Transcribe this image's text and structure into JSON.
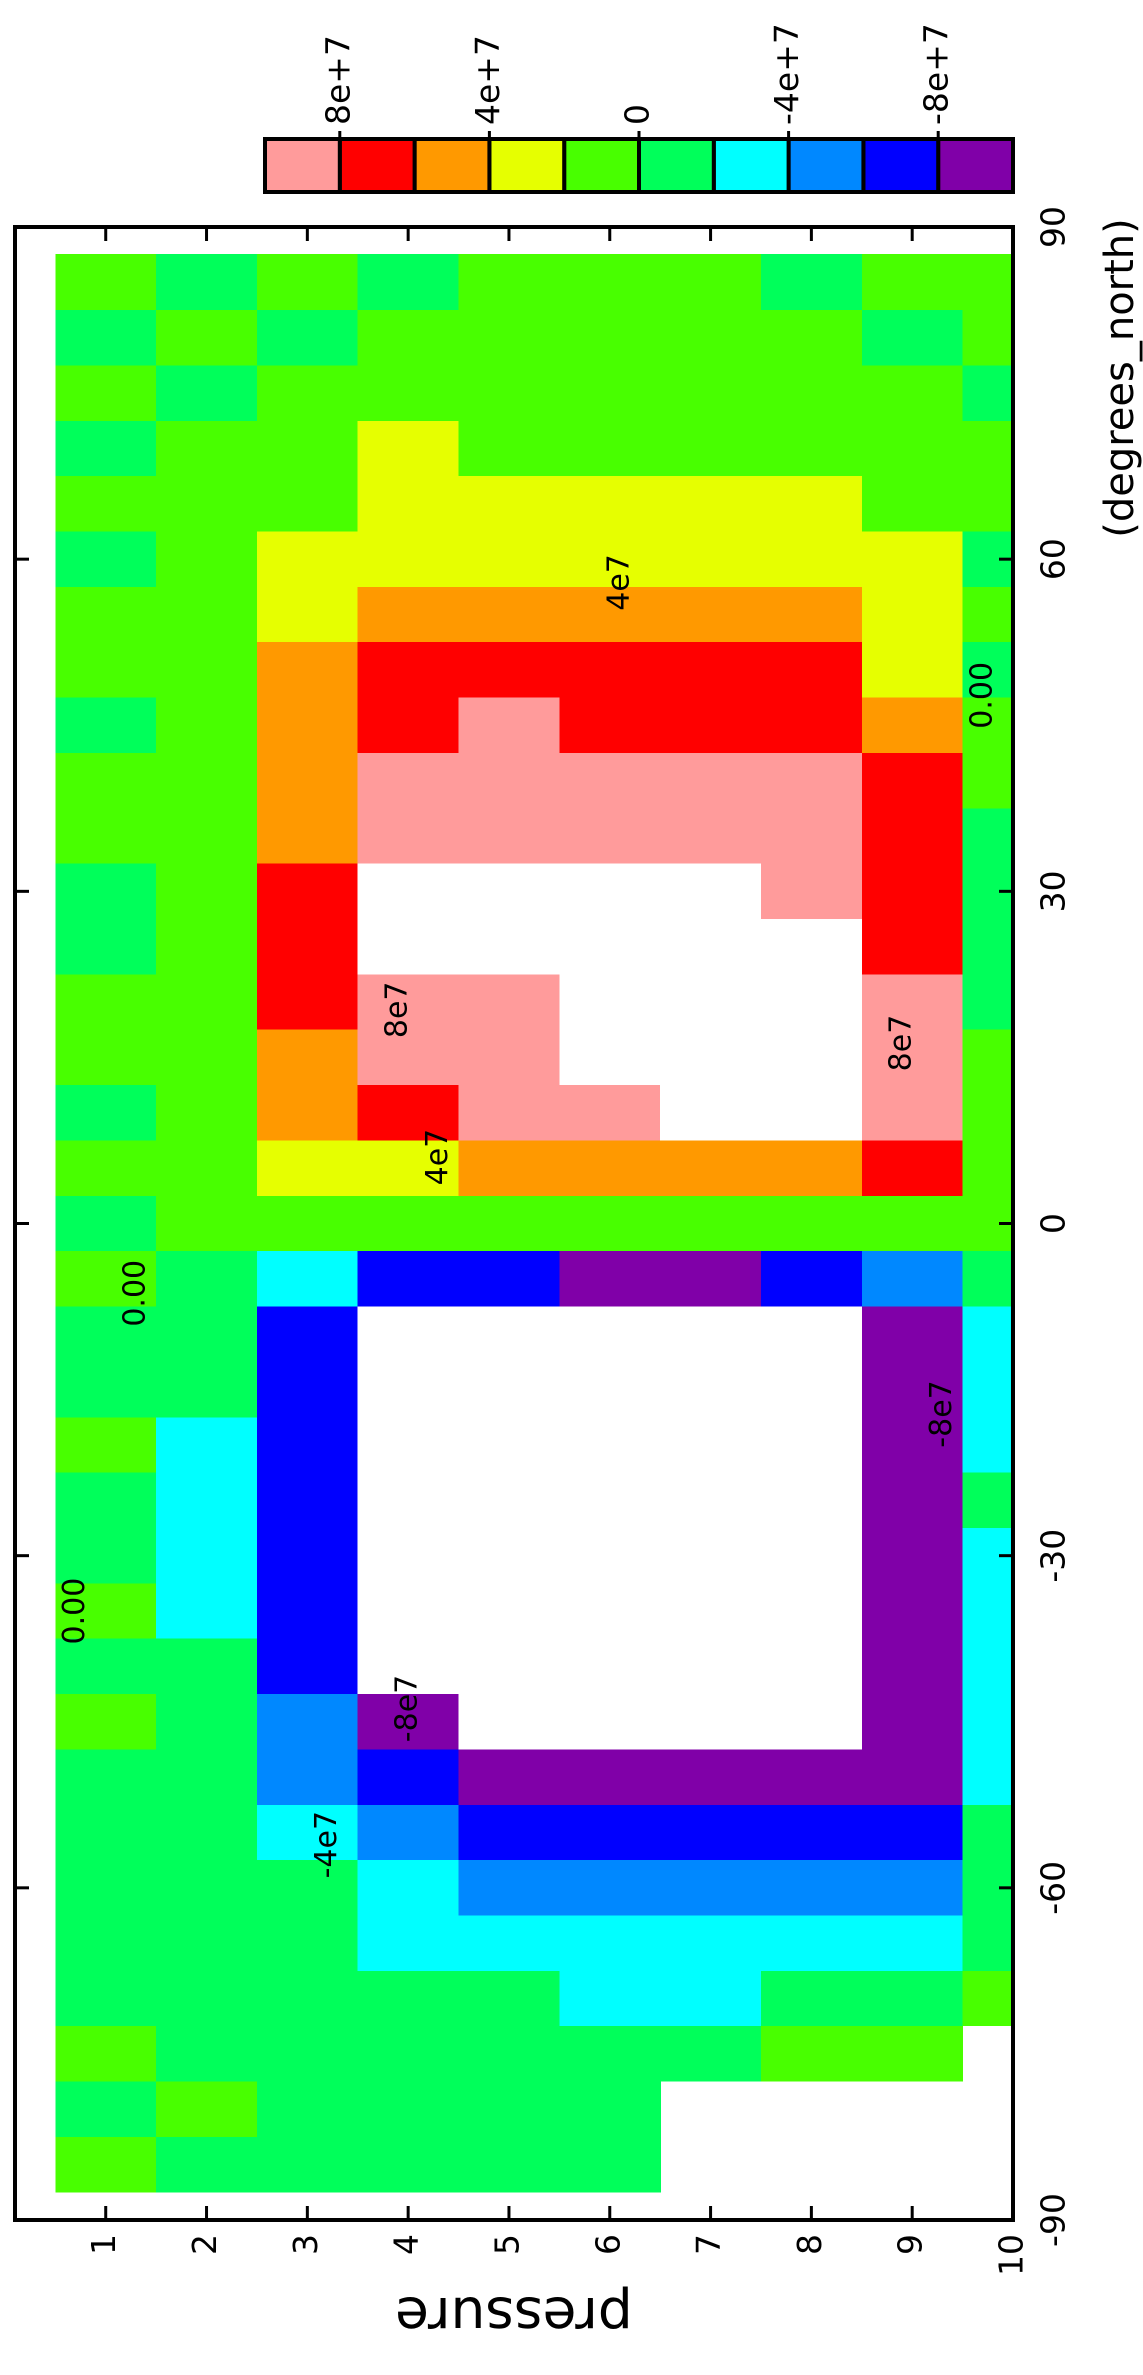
{
  "chart_data": {
    "type": "contour",
    "x_label": "(degrees_north)",
    "y_label": "pressure",
    "x": [
      -85,
      -80,
      -75,
      -70,
      -65,
      -60,
      -55,
      -50,
      -45,
      -40,
      -35,
      -30,
      -25,
      -20,
      -15,
      -10,
      -5,
      0,
      5,
      10,
      15,
      20,
      25,
      30,
      35,
      40,
      45,
      50,
      55,
      60,
      65,
      70,
      75,
      80,
      85
    ],
    "y": [
      1,
      2,
      3,
      4,
      5,
      6,
      7,
      8,
      9,
      10
    ],
    "z": [
      [
        5000000.0,
        -5000000.0,
        5000000.0,
        -5000000.0,
        -5000000.0,
        -5000000.0,
        -5000000.0,
        -5000000.0,
        5000000.0,
        -5000000.0,
        5000000.0,
        -5000000.0,
        -5000000.0,
        5000000.0,
        -5000000.0,
        -5000000.0,
        5000000.0,
        -5000000.0,
        5000000.0,
        -5000000.0,
        5000000.0,
        5000000.0,
        -5000000.0,
        -5000000.0,
        5000000.0,
        5000000.0,
        -5000000.0,
        5000000.0,
        5000000.0,
        -5000000.0,
        5000000.0,
        -5000000.0,
        5000000.0,
        -5000000.0,
        5000000.0
      ],
      [
        -5000000.0,
        5000000.0,
        -5000000.0,
        -5000000.0,
        -10000000.0,
        -10000000.0,
        -12000000.0,
        -15000000.0,
        -17000000.0,
        -19000000.0,
        -21000000.0,
        -22000000.0,
        -22000000.0,
        -21000000.0,
        -18000000.0,
        -13000000.0,
        -5000000.0,
        5000000.0,
        10000000.0,
        13000000.0,
        15000000.0,
        17000000.0,
        18000000.0,
        18000000.0,
        18000000.0,
        17000000.0,
        16000000.0,
        15000000.0,
        13000000.0,
        11000000.0,
        8000000.0,
        5000000.0,
        -5000000.0,
        5000000.0,
        -5000000.0
      ],
      [
        -5000000.0,
        -5000000.0,
        -5000000.0,
        -8000000.0,
        -12000000.0,
        -18000000.0,
        -30000000.0,
        -42000000.0,
        -55000000.0,
        -65000000.0,
        -72000000.0,
        -75000000.0,
        -75000000.0,
        -75000000.0,
        -72000000.0,
        -60000000.0,
        -20000000.0,
        10000000.0,
        30000000.0,
        45000000.0,
        55000000.0,
        62000000.0,
        63000000.0,
        62000000.0,
        58000000.0,
        55000000.0,
        48000000.0,
        42000000.0,
        35000000.0,
        28000000.0,
        20000000.0,
        12000000.0,
        5000000.0,
        -5000000.0,
        5000000.0
      ],
      [
        -5000000.0,
        -5000000.0,
        -8000000.0,
        -13000000.0,
        -22000000.0,
        -30000000.0,
        -55000000.0,
        -70000000.0,
        -90000000.0,
        -105000000.0,
        -105000000.0,
        -105000000.0,
        -105000000.0,
        -105000000.0,
        -105000000.0,
        -105000000.0,
        -70000000.0,
        15000000.0,
        40000000.0,
        70000000.0,
        85000000.0,
        95000000.0,
        102000000.0,
        102000000.0,
        93000000.0,
        85000000.0,
        75000000.0,
        65000000.0,
        50000000.0,
        40000000.0,
        30000000.0,
        21000000.0,
        10000000.0,
        5000000.0,
        -5000000.0
      ],
      [
        -5000000.0,
        -5000000.0,
        -10000000.0,
        -17000000.0,
        -28000000.0,
        -42000000.0,
        -65000000.0,
        -85000000.0,
        -102000000.0,
        -110000000.0,
        -110000000.0,
        -110000000.0,
        -110000000.0,
        -110000000.0,
        -110000000.0,
        -110000000.0,
        -75000000.0,
        10000000.0,
        50000000.0,
        85000000.0,
        90000000.0,
        95000000.0,
        105000000.0,
        105000000.0,
        95000000.0,
        90000000.0,
        85000000.0,
        70000000.0,
        50000000.0,
        40000000.0,
        30000000.0,
        20000000.0,
        10000000.0,
        5000000.0,
        5000000.0
      ],
      [
        -5000000.0,
        -8000000.0,
        -12000000.0,
        -20000000.0,
        -30000000.0,
        -45000000.0,
        -70000000.0,
        -90000000.0,
        -105000000.0,
        -110000000.0,
        -110000000.0,
        -110000000.0,
        -110000000.0,
        -110000000.0,
        -110000000.0,
        -110000000.0,
        -80000000.0,
        10000000.0,
        55000000.0,
        95000000.0,
        103000000.0,
        103000000.0,
        105000000.0,
        105000000.0,
        95000000.0,
        85000000.0,
        75000000.0,
        72000000.0,
        50000000.0,
        40000000.0,
        30000000.0,
        20000000.0,
        8000000.0,
        5000000.0,
        5000000.0
      ],
      [
        null,
        null,
        -5000000.0,
        -20000000.0,
        -30000000.0,
        -47000000.0,
        -72000000.0,
        -90000000.0,
        -105000000.0,
        -110000000.0,
        -110000000.0,
        -110000000.0,
        -110000000.0,
        -110000000.0,
        -110000000.0,
        -110000000.0,
        -80000000.0,
        10000000.0,
        60000000.0,
        105000000.0,
        105000000.0,
        105000000.0,
        105000000.0,
        105000000.0,
        95000000.0,
        85000000.0,
        75000000.0,
        70000000.0,
        50000000.0,
        40000000.0,
        30000000.0,
        18000000.0,
        8000000.0,
        5000000.0,
        5000000.0
      ],
      [
        null,
        null,
        5000000.0,
        -15000000.0,
        -28000000.0,
        -45000000.0,
        -70000000.0,
        -85000000.0,
        -102000000.0,
        -110000000.0,
        -110000000.0,
        -110000000.0,
        -110000000.0,
        -110000000.0,
        -110000000.0,
        -110000000.0,
        -75000000.0,
        5000000.0,
        60000000.0,
        105000000.0,
        105000000.0,
        105000000.0,
        105000000.0,
        95000000.0,
        93000000.0,
        88000000.0,
        78000000.0,
        65000000.0,
        45000000.0,
        35000000.0,
        25000000.0,
        15000000.0,
        5000000.0,
        5000000.0,
        -5000000.0
      ],
      [
        null,
        null,
        5000000.0,
        -15000000.0,
        -28000000.0,
        -45000000.0,
        -65000000.0,
        -80000000.0,
        -90000000.0,
        -90000000.0,
        -90000000.0,
        -90000000.0,
        -90000000.0,
        -90000000.0,
        -90000000.0,
        -85000000.0,
        -50000000.0,
        5000000.0,
        70000000.0,
        90000000.0,
        90000000.0,
        85000000.0,
        70000000.0,
        75000000.0,
        70000000.0,
        65000000.0,
        50000000.0,
        35000000.0,
        25000000.0,
        22000000.0,
        15000000.0,
        8000000.0,
        5000000.0,
        -5000000.0,
        5000000.0
      ],
      [
        null,
        null,
        null,
        5000000.0,
        -5000000.0,
        -10000000.0,
        -15000000.0,
        -20000000.0,
        -20000000.0,
        -22000000.0,
        -22000000.0,
        -22000000.0,
        -15000000.0,
        -20000000.0,
        -20000000.0,
        -20000000.0,
        -5000000.0,
        5000000.0,
        15000000.0,
        15000000.0,
        5000000.0,
        -5000000.0,
        -15000000.0,
        -10000000.0,
        -5000000.0,
        5000000.0,
        5000000.0,
        -5000000.0,
        5000000.0,
        -5000000.0,
        5000000.0,
        5000000.0,
        -5000000.0,
        5000000.0,
        5000000.0
      ]
    ],
    "xlim": [
      -90,
      90
    ],
    "xticks": [
      -90,
      -60,
      -30,
      0,
      30,
      60,
      90
    ],
    "ylim": [
      0.1,
      10
    ],
    "y_inverted": true,
    "yticks": [
      1,
      2,
      3,
      4,
      5,
      6,
      7,
      8,
      9,
      10
    ],
    "levels": [
      -100000000.0,
      -80000000.0,
      -60000000.0,
      -40000000.0,
      -20000000.0,
      0,
      20000000.0,
      40000000.0,
      60000000.0,
      80000000.0,
      100000000.0
    ],
    "colors": [
      "#8000a8",
      "#0000ff",
      "#0088ff",
      "#00ffff",
      "#00ff5a",
      "#48ff00",
      "#e6ff00",
      "#ff9900",
      "#ff0000",
      "#ff9b9b"
    ],
    "colorbar_ticks": [
      {
        "value": 80000000.0,
        "label": "8e+7"
      },
      {
        "value": 40000000.0,
        "label": "4e+7"
      },
      0,
      {
        "value": -40000000.0,
        "label": "-4e+7"
      },
      {
        "value": -80000000.0,
        "label": "-8e+7"
      }
    ],
    "contour_labels": [
      {
        "text": "4e7",
        "x": 6,
        "y": 4.3
      },
      {
        "text": "8e7",
        "x": 19.3,
        "y": 3.9
      },
      {
        "text": "4e7",
        "x": 57.9,
        "y": 6.1
      },
      {
        "text": "8e7",
        "x": 16.3,
        "y": 8.9
      },
      {
        "text": "0.00",
        "x": 47.7,
        "y": 9.7
      },
      {
        "text": "-4e7",
        "x": -56.1,
        "y": 3.2
      },
      {
        "text": "-8e7",
        "x": -43.8,
        "y": 4.0
      },
      {
        "text": "-8e7",
        "x": -17.2,
        "y": 9.3
      },
      {
        "text": "0.00",
        "x": -6.3,
        "y": 1.3
      },
      {
        "text": "0.00",
        "x": -35,
        "y": 0.7
      }
    ]
  }
}
